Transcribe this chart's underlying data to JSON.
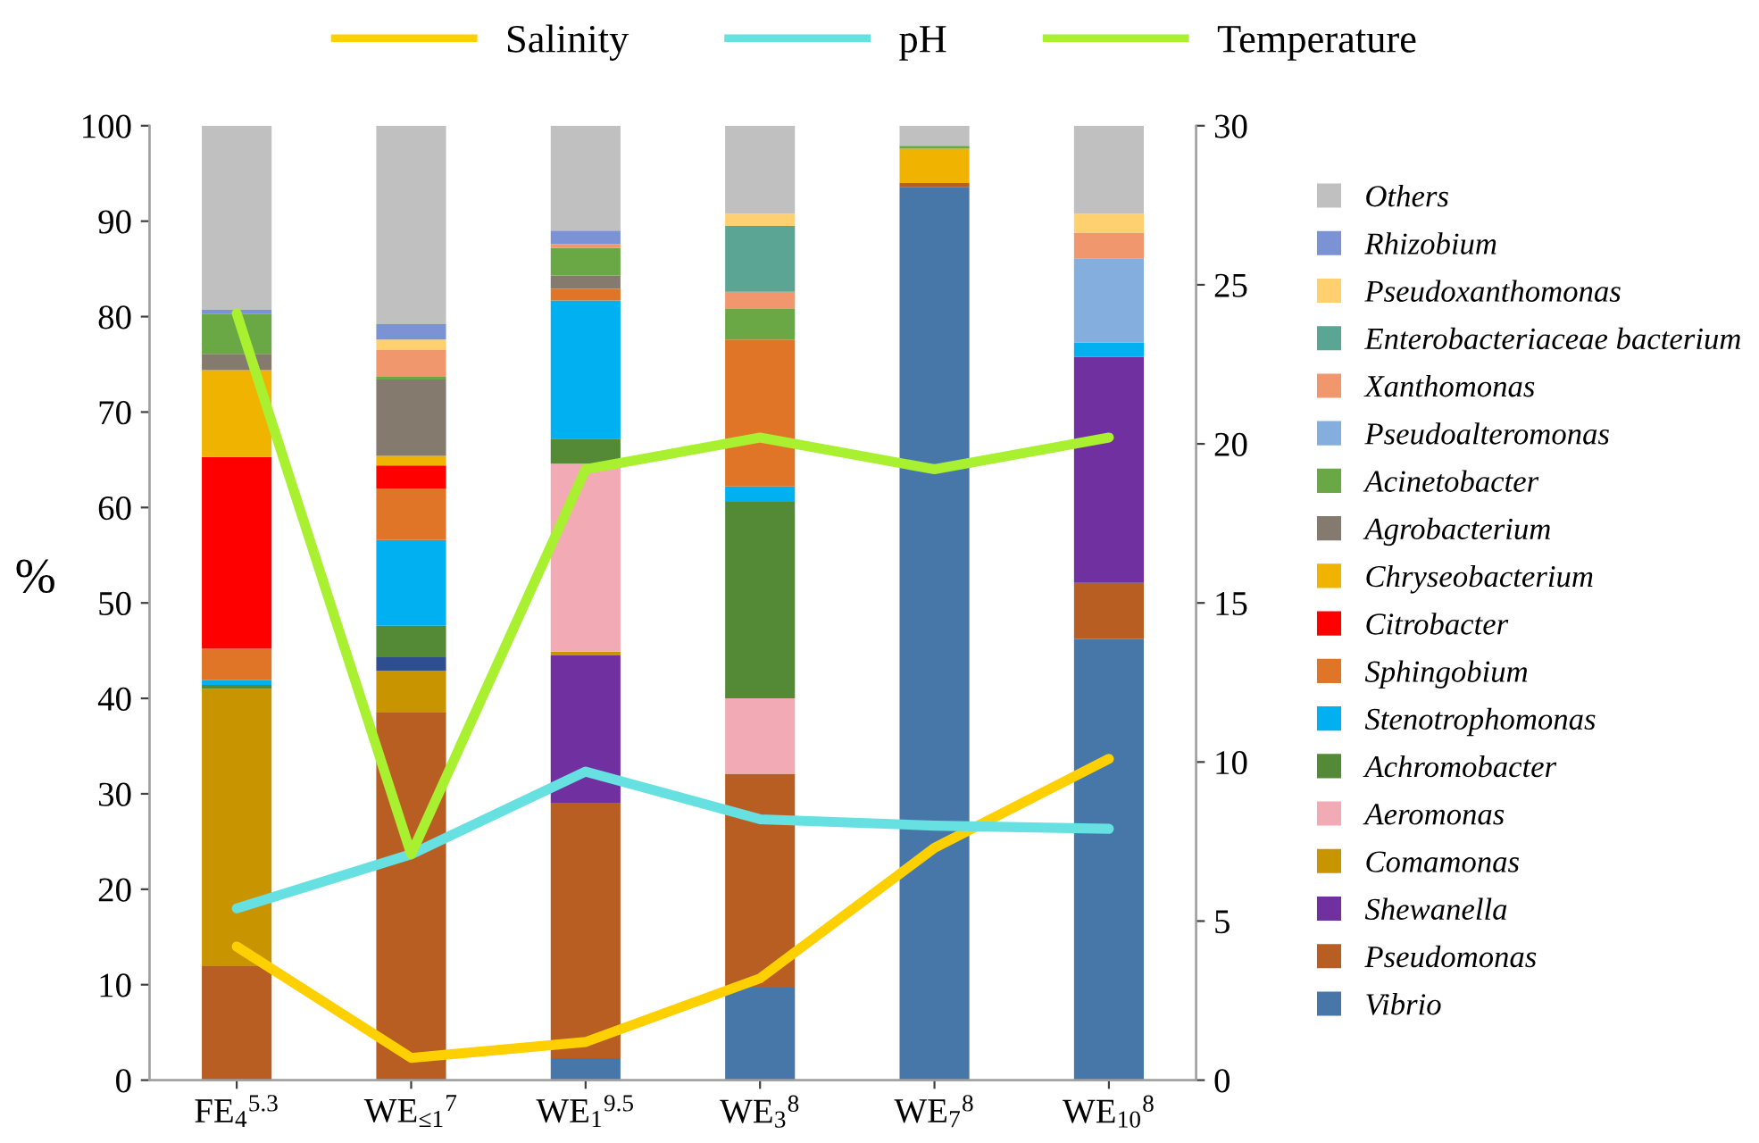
{
  "chart_data": {
    "type": "bar",
    "stacked": true,
    "ylabel": "%",
    "categories": [
      "FE$_{4}$$^{5.3}$",
      "WE$_{≤1}$$^{7}$",
      "WE$_{1}$$^{9.5}$",
      "WE$_{3}$$^{8}$",
      "WE$_{7}$$^{8}$",
      "WE$_{10}$$^{8}$"
    ],
    "ylim": [
      0,
      100
    ],
    "yticks": [
      0,
      10,
      20,
      30,
      40,
      50,
      60,
      70,
      80,
      90,
      100
    ],
    "y2lim": [
      0,
      30
    ],
    "y2ticks": [
      0,
      5,
      10,
      15,
      20,
      25,
      30
    ],
    "grid": false,
    "legend": "right",
    "series": [
      {
        "name": "Vibrio",
        "color": "#4777a8",
        "values": [
          0,
          0,
          2.3,
          9.7,
          93.6,
          46.2
        ]
      },
      {
        "name": "Pseudomonas",
        "color": "#b85e22",
        "values": [
          12,
          38.5,
          26.7,
          22.4,
          0.4,
          5.9
        ]
      },
      {
        "name": "Shewanella",
        "color": "#7030a0",
        "values": [
          0,
          0,
          15.5,
          0,
          0,
          23.7
        ]
      },
      {
        "name": "Comamonas",
        "color": "#c89500",
        "values": [
          29,
          4.4,
          0.4,
          0,
          0,
          0
        ]
      },
      {
        "color": "#2e4e8f",
        "values": [
          0,
          1.4,
          0,
          0,
          0,
          0
        ]
      },
      {
        "name": "Aeromonas",
        "color": "#f2aab5",
        "values": [
          0,
          0,
          19.7,
          7.9,
          0,
          0
        ]
      },
      {
        "name": "Achromobacter",
        "color": "#548a36",
        "values": [
          0.4,
          3.3,
          2.6,
          20.6,
          0,
          0
        ]
      },
      {
        "name": "Stenotrophomonas",
        "color": "#00b0f0",
        "values": [
          0.5,
          9.0,
          14.5,
          1.6,
          0,
          1.5
        ]
      },
      {
        "name": "Sphingobium",
        "color": "#e07528",
        "values": [
          3.3,
          5.4,
          1.2,
          15.4,
          0,
          0
        ]
      },
      {
        "name": "Citrobacter",
        "color": "#ff0000",
        "values": [
          20.1,
          2.4,
          0,
          0,
          0,
          0
        ]
      },
      {
        "name": "Chryseobacterium",
        "color": "#f0b400",
        "values": [
          9.1,
          1.0,
          0,
          0,
          3.6,
          0
        ]
      },
      {
        "name": "Agrobacterium",
        "color": "#857a6e",
        "values": [
          1.7,
          8.0,
          1.4,
          0,
          0,
          0
        ]
      },
      {
        "name": "Acinetobacter",
        "color": "#6aa745",
        "values": [
          4.2,
          0.3,
          2.9,
          3.2,
          0.3,
          0
        ]
      },
      {
        "name": "Pseudoalteromonas",
        "color": "#84aedd",
        "values": [
          0,
          0,
          0,
          0,
          0,
          8.8
        ]
      },
      {
        "name": "Xanthomonas",
        "color": "#f0976e",
        "values": [
          0,
          2.8,
          0.4,
          1.8,
          0,
          2.7
        ]
      },
      {
        "name": "Enterobacteriaceae bacterium",
        "color": "#5aa593",
        "values": [
          0,
          0,
          0,
          6.9,
          0,
          0
        ]
      },
      {
        "name": "Pseudoxanthomonas",
        "color": "#ffd070",
        "values": [
          0,
          1.1,
          0,
          1.3,
          0,
          2.0
        ]
      },
      {
        "name": "Rhizobium",
        "color": "#7b93d4",
        "values": [
          0.4,
          1.6,
          1.4,
          0,
          0,
          0
        ]
      },
      {
        "name": "Others",
        "color": "#c0c0c0",
        "values": [
          19.3,
          20.8,
          11,
          9.2,
          2.1,
          9.2
        ]
      },
      {
        "name": "Salinity",
        "type": "line",
        "axis": "y2",
        "color": "#ffd000",
        "values": [
          4.2,
          0.7,
          1.2,
          3.2,
          7.3,
          10.1
        ]
      },
      {
        "name": "pH",
        "type": "line",
        "axis": "y2",
        "color": "#66e0e0",
        "values": [
          5.4,
          7.1,
          9.7,
          8.2,
          8.0,
          7.9
        ]
      },
      {
        "name": "Temperature",
        "type": "line",
        "axis": "y2",
        "color": "#a8f030",
        "values": [
          24.1,
          7.1,
          19.2,
          20.2,
          19.2,
          20.2
        ]
      }
    ]
  }
}
